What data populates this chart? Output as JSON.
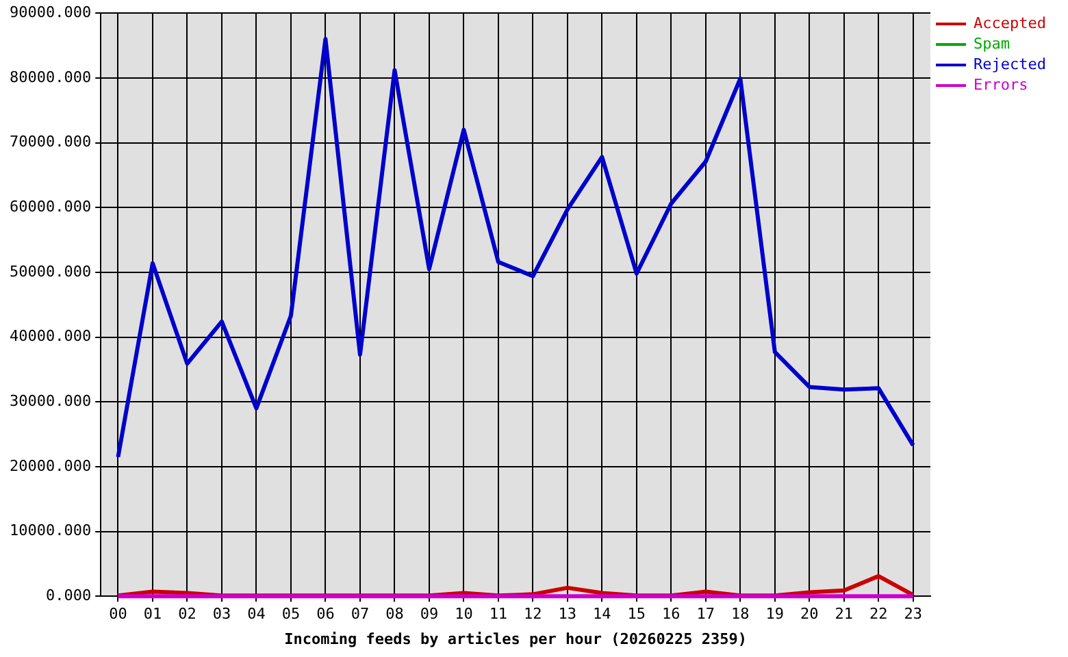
{
  "chart_data": {
    "type": "line",
    "xlabel": "Incoming feeds by articles per hour (20260225 2359)",
    "categories": [
      "00",
      "01",
      "02",
      "03",
      "04",
      "05",
      "06",
      "07",
      "08",
      "09",
      "10",
      "11",
      "12",
      "13",
      "14",
      "15",
      "16",
      "17",
      "18",
      "19",
      "20",
      "21",
      "22",
      "23"
    ],
    "series": [
      {
        "name": "Accepted",
        "color": "#cc0000",
        "values": [
          100,
          700,
          500,
          100,
          100,
          100,
          100,
          100,
          100,
          100,
          500,
          100,
          300,
          1300,
          500,
          100,
          100,
          700,
          100,
          100,
          600,
          900,
          3100,
          200
        ]
      },
      {
        "name": "Spam",
        "color": "#00aa00",
        "values": [
          null,
          null,
          null,
          null,
          null,
          null,
          null,
          null,
          null,
          null,
          null,
          null,
          null,
          null,
          null,
          null,
          null,
          null,
          null,
          null,
          null,
          null,
          null,
          null
        ]
      },
      {
        "name": "Rejected",
        "color": "#0000cc",
        "values": [
          21500,
          51400,
          35900,
          42400,
          29000,
          43300,
          86000,
          37300,
          81200,
          50500,
          72000,
          51600,
          49400,
          59700,
          67800,
          49800,
          60600,
          67100,
          79900,
          37700,
          32300,
          31900,
          32100,
          23300
        ]
      },
      {
        "name": "Errors",
        "color": "#cc00cc",
        "values": [
          0,
          0,
          0,
          0,
          0,
          0,
          0,
          0,
          0,
          0,
          0,
          0,
          0,
          0,
          0,
          0,
          0,
          0,
          0,
          0,
          0,
          0,
          0,
          0
        ]
      }
    ],
    "ylim": [
      0,
      90000
    ],
    "yticks": [
      {
        "value": 0,
        "label": "0.000"
      },
      {
        "value": 10000,
        "label": "10000.000"
      },
      {
        "value": 20000,
        "label": "20000.000"
      },
      {
        "value": 30000,
        "label": "30000.000"
      },
      {
        "value": 40000,
        "label": "40000.000"
      },
      {
        "value": 50000,
        "label": "50000.000"
      },
      {
        "value": 60000,
        "label": "60000.000"
      },
      {
        "value": 70000,
        "label": "70000.000"
      },
      {
        "value": 80000,
        "label": "80000.000"
      },
      {
        "value": 90000,
        "label": "90000.000"
      }
    ],
    "grid": true,
    "legend": "top right"
  }
}
